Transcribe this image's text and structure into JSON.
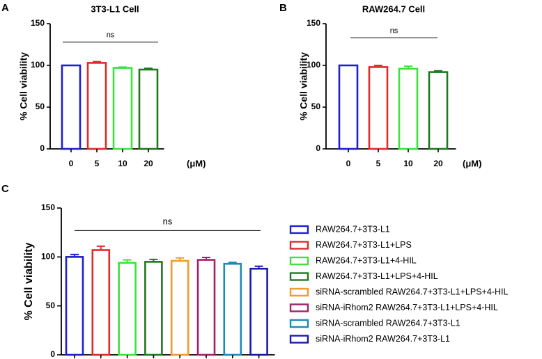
{
  "figure": {
    "panels": {
      "A": "A",
      "B": "B",
      "C": "C"
    }
  },
  "chart_data": [
    {
      "id": "A",
      "type": "bar",
      "title": "3T3-L1 Cell",
      "ylabel": "% Cell viability",
      "xlabel": "",
      "unit": "(μM)",
      "ylim": [
        0,
        150
      ],
      "yticks": [
        0,
        50,
        100,
        150
      ],
      "categories": [
        "0",
        "5",
        "10",
        "20"
      ],
      "values": [
        100,
        103,
        97,
        95
      ],
      "errors": [
        0,
        1.5,
        1,
        1.5
      ],
      "colors": [
        "#1f1fd0",
        "#e02a2a",
        "#3de23d",
        "#1e7a1e"
      ],
      "significance": {
        "label": "ns",
        "y": 128,
        "from": 0,
        "to": 3
      }
    },
    {
      "id": "B",
      "type": "bar",
      "title": "RAW264.7 Cell",
      "ylabel": "% Cell viability",
      "xlabel": "",
      "unit": "(μM)",
      "ylim": [
        0,
        150
      ],
      "yticks": [
        0,
        50,
        100,
        150
      ],
      "categories": [
        "0",
        "5",
        "10",
        "20"
      ],
      "values": [
        100,
        98,
        96,
        92
      ],
      "errors": [
        0,
        2,
        3,
        1.5
      ],
      "colors": [
        "#1f1fd0",
        "#e02a2a",
        "#3de23d",
        "#1e7a1e"
      ],
      "significance": {
        "label": "ns",
        "y": 133,
        "from": 0,
        "to": 3
      }
    },
    {
      "id": "C",
      "type": "bar",
      "title": "",
      "ylabel": "% Cell viability",
      "xlabel": "",
      "ylim": [
        0,
        150
      ],
      "yticks": [
        0,
        50,
        100,
        150
      ],
      "categories": [
        "RAW264.7+3T3-L1",
        "RAW264.7+3T3-L1+LPS",
        "RAW264.7+3T3-L1+4-HIL",
        "RAW264.7+3T3-L1+LPS+4-HIL",
        "siRNA-scrambled RAW264.7+3T3-L1+LPS+4-HIL",
        "siRNA-iRhom2 RAW264.7+3T3-L1+LPS+4-HIL",
        "siRNA-scrambled RAW264.7+3T3-L1",
        "siRNA-iRhom2 RAW264.7+3T3-L1"
      ],
      "values": [
        100,
        107,
        94,
        95,
        96,
        97,
        93,
        88
      ],
      "errors": [
        2.5,
        4,
        3,
        2.5,
        3,
        2.5,
        1.5,
        2.5
      ],
      "colors": [
        "#1f1fd0",
        "#e02a2a",
        "#3de23d",
        "#1e7a1e",
        "#f29a2e",
        "#a0226a",
        "#1f8ab4",
        "#1a1aa8"
      ],
      "legend": {
        "position": "right"
      },
      "significance": {
        "label": "ns",
        "y": 127,
        "from": 0,
        "to": 7
      }
    }
  ]
}
